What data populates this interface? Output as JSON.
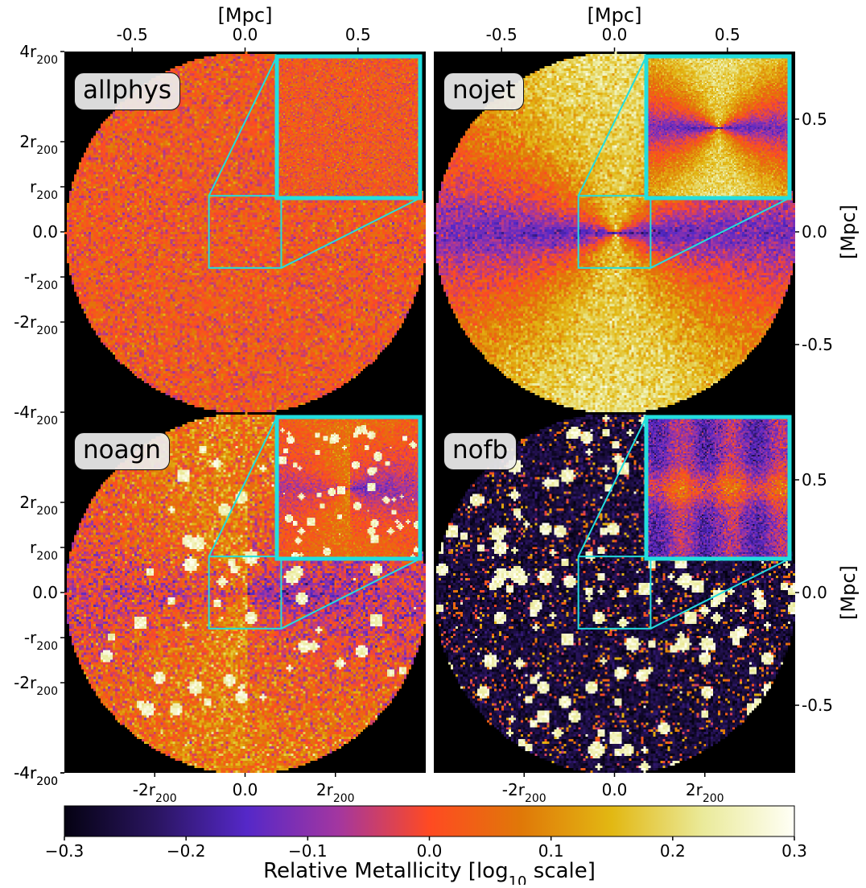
{
  "chart_data": {
    "type": "heatmap",
    "colorbar": {
      "label": "Relative Metallicity [log",
      "label_sub": "10",
      "label_end": " scale]",
      "ticks": [
        "−0.3",
        "−0.2",
        "−0.1",
        "0.0",
        "0.1",
        "0.2",
        "0.3"
      ],
      "tick_values": [
        -0.3,
        -0.2,
        -0.1,
        0.0,
        0.1,
        0.2,
        0.3
      ],
      "range": [
        -0.3,
        0.3
      ],
      "colors": [
        "#050212",
        "#2a1560",
        "#5528c8",
        "#a336a0",
        "#ff4a22",
        "#e07808",
        "#e2b813",
        "#eaea9a",
        "#fffff6"
      ]
    },
    "axes": {
      "top_label": "[Mpc]",
      "right_label": "[Mpc]",
      "mpc_ticks": [
        "-0.5",
        "0.0",
        "0.5"
      ],
      "mpc_values": [
        -0.5,
        0.0,
        0.5
      ],
      "mpc_range": [
        -0.8,
        0.8
      ],
      "r200_left_ticks": [
        {
          "main": "4r",
          "sub": "200",
          "value": 4
        },
        {
          "main": "2r",
          "sub": "200",
          "value": 2
        },
        {
          "main": "r",
          "sub": "200",
          "value": 1
        },
        {
          "main": "0.0",
          "sub": "",
          "value": 0
        },
        {
          "main": "-r",
          "sub": "200",
          "value": -1
        },
        {
          "main": "-2r",
          "sub": "200",
          "value": -2
        },
        {
          "main": "-4r",
          "sub": "200",
          "value": -4
        }
      ],
      "r200_bottom_ticks": [
        {
          "main": "-2r",
          "sub": "200",
          "value": -2
        },
        {
          "main": "0.0",
          "sub": "",
          "value": 0
        },
        {
          "main": "2r",
          "sub": "200",
          "value": 2
        }
      ],
      "r200_range": [
        -4,
        4
      ]
    },
    "panels": [
      {
        "name": "allphys",
        "pattern": "uniform",
        "mean": 0.02,
        "noise": 0.09,
        "inset_pattern": "uniform"
      },
      {
        "name": "nojet",
        "pattern": "bicone",
        "mean": 0.0,
        "noise": 0.07,
        "inset_pattern": "bicone"
      },
      {
        "name": "noagn",
        "pattern": "weak-bicone",
        "mean": 0.02,
        "noise": 0.12,
        "inset_pattern": "weak-bicone"
      },
      {
        "name": "nofb",
        "pattern": "clumpy",
        "mean": -0.26,
        "noise": 0.05,
        "inset_pattern": "disk"
      }
    ],
    "zoom_box_r200": [
      -0.8,
      0.8
    ],
    "colors": {
      "inset_border": "#22dede",
      "background": "#000000"
    }
  }
}
